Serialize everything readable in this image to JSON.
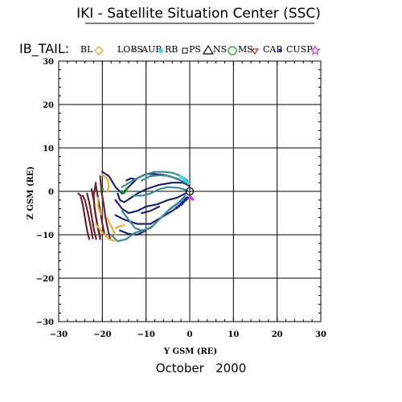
{
  "chart_data": {
    "type": "scatter",
    "title": "IKI - Satellite Situation Center (SSC)",
    "plot_label": "IB_TAIL:",
    "xlabel": "Y GSM (RE)",
    "ylabel": "Z GSM (RE)",
    "footer": "October   2000",
    "xlim": [
      -30,
      30
    ],
    "ylim": [
      -30,
      30
    ],
    "x_ticks": [
      -30,
      -20,
      -10,
      0,
      10,
      20,
      30
    ],
    "y_ticks": [
      -30,
      -20,
      -10,
      0,
      10,
      20,
      30
    ],
    "x_tick_labels": [
      "−30",
      "−20",
      "−10",
      "0",
      "10",
      "20",
      "30"
    ],
    "y_tick_labels": [
      "−30",
      "−20",
      "−10",
      "0",
      "10",
      "20",
      "30"
    ],
    "grid": true,
    "legend_placement": "top",
    "legend": [
      {
        "label": "BL",
        "marker": "diamond",
        "color": "#f2a93b"
      },
      {
        "label": "LOBS",
        "marker": "square",
        "color": "#7a7a9a"
      },
      {
        "label": "AUR",
        "marker": "asterisk",
        "color": "#33d6e8"
      },
      {
        "label": "RB",
        "marker": "square-open",
        "color": "#000000"
      },
      {
        "label": "PS",
        "marker": "triangle-open",
        "color": "#000000"
      },
      {
        "label": "NS",
        "marker": "circle-open",
        "color": "#1aa01a"
      },
      {
        "label": "MS",
        "marker": "triangle-down-open",
        "color": "#b03030"
      },
      {
        "label": "CAP",
        "marker": "dot",
        "color": "#1a1aa0"
      },
      {
        "label": "CUSP",
        "marker": "star-open",
        "color": "#d12ad1"
      }
    ],
    "series": [
      {
        "name": "MS",
        "color": "#6b1f2a",
        "lines": [
          [
            [
              -25.5,
              -0.5
            ],
            [
              -25,
              -1
            ],
            [
              -24.5,
              -3
            ],
            [
              -24,
              -6
            ],
            [
              -23.5,
              -9
            ],
            [
              -23,
              -11
            ]
          ],
          [
            [
              -24.5,
              -1
            ],
            [
              -24,
              -2
            ],
            [
              -23.3,
              -5
            ],
            [
              -22.7,
              -8
            ],
            [
              -22.2,
              -10.8
            ]
          ],
          [
            [
              -23.5,
              -0.5
            ],
            [
              -23,
              -2.5
            ],
            [
              -22.4,
              -6
            ],
            [
              -21.9,
              -9
            ],
            [
              -21.4,
              -11
            ]
          ],
          [
            [
              -22.5,
              0.5
            ],
            [
              -22,
              -2
            ],
            [
              -21.6,
              -5
            ],
            [
              -21,
              -8.5
            ],
            [
              -20.5,
              -11
            ]
          ],
          [
            [
              -21.5,
              1.5
            ],
            [
              -21,
              -1.5
            ],
            [
              -20.5,
              -4.5
            ],
            [
              -20,
              -7.5
            ],
            [
              -19.5,
              -10
            ]
          ],
          [
            [
              -20.5,
              3.5
            ],
            [
              -20.2,
              0
            ],
            [
              -19.7,
              -3
            ],
            [
              -19.3,
              -6
            ],
            [
              -18.7,
              -9
            ],
            [
              -18.2,
              -11
            ]
          ],
          [
            [
              -21.5,
              2
            ],
            [
              -22,
              -1
            ],
            [
              -21.8,
              -4
            ],
            [
              -21.2,
              -7.5
            ],
            [
              -20.5,
              -10.5
            ]
          ]
        ]
      },
      {
        "name": "BL",
        "color": "#f2a93b",
        "lines": [
          [
            [
              -20,
              3.8
            ],
            [
              -19,
              3
            ],
            [
              -18.5,
              1.5
            ],
            [
              -18.8,
              0
            ]
          ],
          [
            [
              -21,
              -1.5
            ],
            [
              -21,
              -3.5
            ],
            [
              -20.3,
              -5.5
            ]
          ],
          [
            [
              -19,
              -6
            ],
            [
              -18,
              -8
            ],
            [
              -17,
              -10
            ]
          ],
          [
            [
              -21.5,
              -7.5
            ],
            [
              -20,
              -9.5
            ],
            [
              -18.5,
              -11
            ],
            [
              -17,
              -11.5
            ]
          ],
          [
            [
              -17,
              -8.5
            ],
            [
              -16,
              -8
            ],
            [
              -15,
              -7.8
            ]
          ]
        ]
      },
      {
        "name": "IB_TAIL (navy)",
        "color": "#1a1f6b",
        "lines": [
          [
            [
              -20,
              4.5
            ],
            [
              -18.5,
              3.5
            ],
            [
              -17,
              1
            ],
            [
              -15.5,
              -0.5
            ],
            [
              -14,
              1
            ],
            [
              -12,
              3
            ],
            [
              -10,
              4
            ],
            [
              -8,
              4
            ],
            [
              -6,
              3.8
            ],
            [
              -4,
              3.3
            ],
            [
              -2,
              2.5
            ],
            [
              -0.5,
              1.5
            ]
          ],
          [
            [
              -16.5,
              -0.5
            ],
            [
              -16,
              -2
            ],
            [
              -15,
              -2.5
            ],
            [
              -13.5,
              -1.5
            ],
            [
              -12,
              -0.5
            ],
            [
              -10,
              0.5
            ],
            [
              -7,
              1.5
            ],
            [
              -4,
              2
            ],
            [
              -1.5,
              2
            ],
            [
              0,
              1.2
            ]
          ],
          [
            [
              -17,
              -2
            ],
            [
              -15.5,
              -4
            ],
            [
              -14,
              -5
            ],
            [
              -12,
              -4.5
            ],
            [
              -10,
              -3.5
            ],
            [
              -7.5,
              -3
            ],
            [
              -5,
              -2
            ],
            [
              -3,
              -1.5
            ],
            [
              -1,
              -0.5
            ]
          ],
          [
            [
              -14.5,
              2.5
            ],
            [
              -13.5,
              3
            ],
            [
              -12.5,
              2.8
            ]
          ],
          [
            [
              -17,
              -5.5
            ],
            [
              -15,
              -6.5
            ],
            [
              -12,
              -7.5
            ],
            [
              -9,
              -7.5
            ],
            [
              -6.5,
              -6
            ],
            [
              -4,
              -4.5
            ],
            [
              -2,
              -3
            ],
            [
              -0.5,
              -1.5
            ]
          ],
          [
            [
              -16,
              -9
            ],
            [
              -14,
              -9.8
            ],
            [
              -12,
              -10
            ],
            [
              -10,
              -9
            ]
          ],
          [
            [
              -11,
              -5
            ],
            [
              -9,
              -4.5
            ],
            [
              -7,
              -3.5
            ]
          ]
        ]
      },
      {
        "name": "IB_TAIL (teal)",
        "color": "#3a8a96",
        "lines": [
          [
            [
              -15.5,
              1
            ],
            [
              -13,
              2.5
            ],
            [
              -10.5,
              3.8
            ],
            [
              -8,
              4.5
            ],
            [
              -6,
              4.5
            ],
            [
              -4,
              4.3
            ],
            [
              -2,
              3.5
            ],
            [
              -0.5,
              2.5
            ]
          ],
          [
            [
              -11,
              2.5
            ],
            [
              -9,
              3.5
            ],
            [
              -7,
              3.7
            ],
            [
              -5,
              3.6
            ],
            [
              -3,
              3
            ],
            [
              -1,
              2
            ]
          ],
          [
            [
              -15.5,
              -4.5
            ],
            [
              -14,
              -6.5
            ],
            [
              -12.5,
              -8.5
            ],
            [
              -11,
              -9
            ],
            [
              -9,
              -8.5
            ],
            [
              -7,
              -6.5
            ],
            [
              -5,
              -4.5
            ],
            [
              -3,
              -3
            ],
            [
              -1,
              -1.5
            ]
          ],
          [
            [
              -18,
              -10
            ],
            [
              -16.5,
              -11.5
            ],
            [
              -14.5,
              -11
            ],
            [
              -12.5,
              -9.5
            ],
            [
              -10.5,
              -9
            ],
            [
              -8.5,
              -8
            ],
            [
              -6.5,
              -6
            ],
            [
              -4.5,
              -4
            ],
            [
              -2.5,
              -2.5
            ],
            [
              -1,
              -1
            ]
          ],
          [
            [
              -13,
              -1
            ],
            [
              -11,
              -1
            ],
            [
              -9,
              -0.5
            ],
            [
              -7,
              0.5
            ],
            [
              -5,
              1
            ],
            [
              -2.5,
              0.8
            ],
            [
              -0.5,
              0.2
            ]
          ]
        ]
      },
      {
        "name": "AUR",
        "color": "#33d6e8",
        "points": [
          [
            -1.5,
            3.0
          ],
          [
            -1.2,
            2.7
          ],
          [
            -0.9,
            2.4
          ],
          [
            -0.6,
            2.1
          ],
          [
            -0.3,
            1.8
          ],
          [
            -1.8,
            3.2
          ],
          [
            -2.1,
            3.4
          ]
        ]
      },
      {
        "name": "CAP",
        "color": "#1a1aa0",
        "points": [
          [
            -0.5,
            -1.5
          ],
          [
            -1,
            -2
          ],
          [
            -1.5,
            -2.5
          ],
          [
            -2,
            -3
          ],
          [
            -2.5,
            -3.4
          ],
          [
            -3,
            -3.8
          ],
          [
            -0.8,
            -1.8
          ],
          [
            -1.8,
            -2.8
          ]
        ]
      },
      {
        "name": "CUSP",
        "color": "#d12ad1",
        "points": [
          [
            0.2,
            -1.4
          ],
          [
            0.6,
            -1.8
          ]
        ]
      },
      {
        "name": "NS",
        "color": "#1aa01a",
        "points": [
          [
            -20,
            0.5
          ],
          [
            -15.5,
            0
          ],
          [
            -14.5,
            0.5
          ],
          [
            -15,
            -0.3
          ]
        ]
      }
    ],
    "earth": {
      "x": 0,
      "y": 0
    }
  }
}
